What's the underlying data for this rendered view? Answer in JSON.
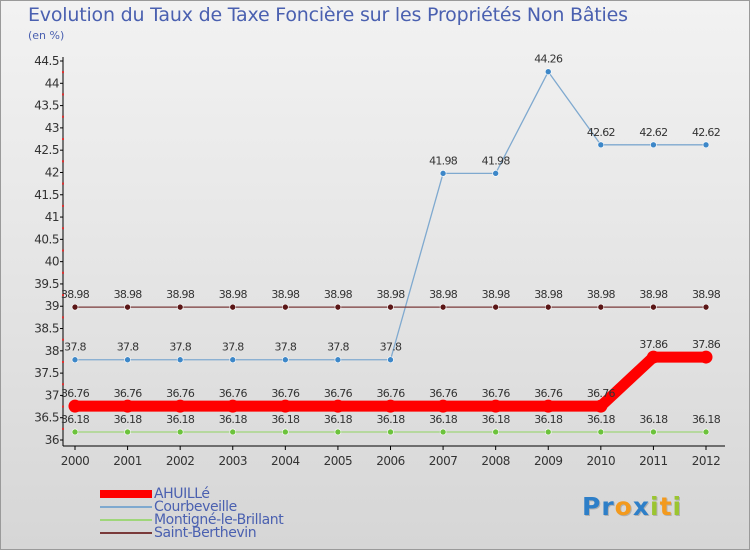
{
  "title": "Evolution du Taux de Taxe Foncière sur les Propriétés Non Bâties",
  "unit_label": "(en %)",
  "logo": {
    "text": "Proxiti",
    "letters": [
      "P",
      "r",
      "o",
      "x",
      "i",
      "t",
      "i"
    ],
    "colors": [
      "#2e7fc8",
      "#2e7fc8",
      "#f39a1e",
      "#2e7fc8",
      "#9bc530",
      "#f39a1e",
      "#9bc530"
    ]
  },
  "chart_data": {
    "type": "line",
    "title": "Evolution du Taux de Taxe Foncière sur les Propriétés Non Bâties",
    "ylabel": "(en %)",
    "xlabel": "",
    "x": [
      2000,
      2001,
      2002,
      2003,
      2004,
      2005,
      2006,
      2007,
      2008,
      2009,
      2010,
      2011,
      2012
    ],
    "ylim": [
      36,
      44.5
    ],
    "yticks": [
      36,
      36.5,
      37,
      37.5,
      38,
      38.5,
      39,
      39.5,
      40,
      40.5,
      41,
      41.5,
      42,
      42.5,
      43,
      43.5,
      44,
      44.5
    ],
    "ytick_labels": [
      "36",
      "36.5",
      "37",
      "37.5",
      "38",
      "38.5",
      "39",
      "39.5",
      "40",
      "40.5",
      "41",
      "41.5",
      "42",
      "42.5",
      "43",
      "43.5",
      "44",
      "44.5"
    ],
    "series": [
      {
        "name": "AHUILLé",
        "color": "#ff0000",
        "point_color": "#ff0000",
        "highlight": true,
        "values": [
          36.76,
          36.76,
          36.76,
          36.76,
          36.76,
          36.76,
          36.76,
          36.76,
          36.76,
          36.76,
          36.76,
          37.86,
          37.86
        ],
        "labels": [
          "36.76",
          "36.76",
          "36.76",
          "36.76",
          "36.76",
          "36.76",
          "36.76",
          "36.76",
          "36.76",
          "36.76",
          "36.76",
          "37.86",
          "37.86"
        ]
      },
      {
        "name": "Courbeveille",
        "color": "#7fa9cf",
        "point_color": "#3d87c8",
        "values": [
          37.8,
          37.8,
          37.8,
          37.8,
          37.8,
          37.8,
          37.8,
          41.98,
          41.98,
          44.26,
          42.62,
          42.62,
          42.62
        ],
        "labels": [
          "37.8",
          "37.8",
          "37.8",
          "37.8",
          "37.8",
          "37.8",
          "37.8",
          "41.98",
          "41.98",
          "44.26",
          "42.62",
          "42.62",
          "42.62"
        ]
      },
      {
        "name": "Montigné-le-Brillant",
        "color": "#9fd67a",
        "point_color": "#6cc23c",
        "values": [
          36.18,
          36.18,
          36.18,
          36.18,
          36.18,
          36.18,
          36.18,
          36.18,
          36.18,
          36.18,
          36.18,
          36.18,
          36.18
        ],
        "labels": [
          "36.18",
          "36.18",
          "36.18",
          "36.18",
          "36.18",
          "36.18",
          "36.18",
          "36.18",
          "36.18",
          "36.18",
          "36.18",
          "36.18",
          "36.18"
        ]
      },
      {
        "name": "Saint-Berthevin",
        "color": "#7a3a3a",
        "point_color": "#5a1616",
        "values": [
          38.98,
          38.98,
          38.98,
          38.98,
          38.98,
          38.98,
          38.98,
          38.98,
          38.98,
          38.98,
          38.98,
          38.98,
          38.98
        ],
        "labels": [
          "38.98",
          "38.98",
          "38.98",
          "38.98",
          "38.98",
          "38.98",
          "38.98",
          "38.98",
          "38.98",
          "38.98",
          "38.98",
          "38.98",
          "38.98"
        ]
      }
    ],
    "legend_position": "bottom-left",
    "grid": false
  }
}
